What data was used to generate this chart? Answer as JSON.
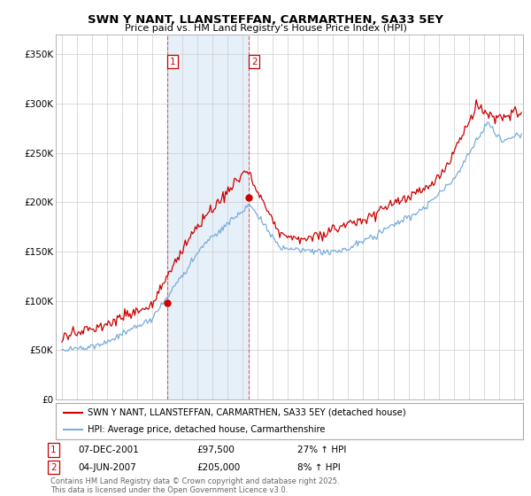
{
  "title": "SWN Y NANT, LLANSTEFFAN, CARMARTHEN, SA33 5EY",
  "subtitle": "Price paid vs. HM Land Registry's House Price Index (HPI)",
  "ylabel_ticks": [
    "£0",
    "£50K",
    "£100K",
    "£150K",
    "£200K",
    "£250K",
    "£300K",
    "£350K"
  ],
  "ytick_vals": [
    0,
    50000,
    100000,
    150000,
    200000,
    250000,
    300000,
    350000
  ],
  "ylim": [
    0,
    370000
  ],
  "xlim_start": 1994.6,
  "xlim_end": 2025.6,
  "red_color": "#cc0000",
  "blue_color": "#7aaddc",
  "vline1_x": 2002.0,
  "vline2_x": 2007.42,
  "marker1_x": 2002.0,
  "marker1_y": 97500,
  "marker2_x": 2007.42,
  "marker2_y": 205000,
  "legend_label_red": "SWN Y NANT, LLANSTEFFAN, CARMARTHEN, SA33 5EY (detached house)",
  "legend_label_blue": "HPI: Average price, detached house, Carmarthenshire",
  "table_row1": [
    "1",
    "07-DEC-2001",
    "£97,500",
    "27% ↑ HPI"
  ],
  "table_row2": [
    "2",
    "04-JUN-2007",
    "£205,000",
    "8% ↑ HPI"
  ],
  "footer": "Contains HM Land Registry data © Crown copyright and database right 2025.\nThis data is licensed under the Open Government Licence v3.0.",
  "background_color": "#ffffff",
  "grid_color": "#cccccc",
  "span_color": "#d0e4f5"
}
